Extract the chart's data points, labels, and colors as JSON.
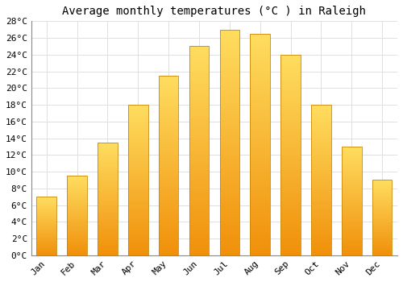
{
  "title": "Average monthly temperatures (°C ) in Raleigh",
  "months": [
    "Jan",
    "Feb",
    "Mar",
    "Apr",
    "May",
    "Jun",
    "Jul",
    "Aug",
    "Sep",
    "Oct",
    "Nov",
    "Dec"
  ],
  "values": [
    7.0,
    9.5,
    13.5,
    18.0,
    21.5,
    25.0,
    27.0,
    26.5,
    24.0,
    18.0,
    13.0,
    9.0
  ],
  "ylim": [
    0,
    28
  ],
  "yticks": [
    0,
    2,
    4,
    6,
    8,
    10,
    12,
    14,
    16,
    18,
    20,
    22,
    24,
    26,
    28
  ],
  "bar_color_bottom": "#F0900A",
  "bar_color_top": "#FFDD60",
  "bar_edge_color": "#C8880A",
  "background_color": "#FFFFFF",
  "grid_color": "#E0E0E0",
  "title_fontsize": 10,
  "tick_fontsize": 8,
  "font_family": "monospace",
  "bar_width": 0.65,
  "n_grad_steps": 100
}
